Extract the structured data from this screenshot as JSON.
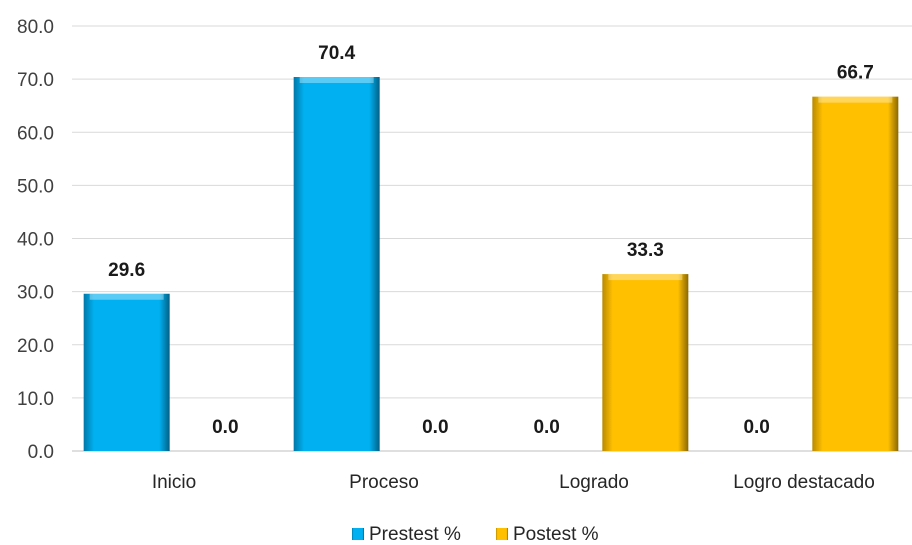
{
  "chart_data": {
    "type": "bar",
    "categories": [
      "Inicio",
      "Proceso",
      "Logrado",
      "Logro destacado"
    ],
    "series": [
      {
        "name": "Prestest %",
        "values": [
          29.6,
          70.4,
          0.0,
          0.0
        ],
        "color": "#00B0F0"
      },
      {
        "name": "Postest %",
        "values": [
          0.0,
          0.0,
          33.3,
          66.7
        ],
        "color": "#FFC000"
      }
    ],
    "title": "",
    "xlabel": "",
    "ylabel": "",
    "ylim": [
      0,
      80
    ],
    "yticks": [
      "0.0",
      "10.0",
      "20.0",
      "30.0",
      "40.0",
      "50.0",
      "60.0",
      "70.0",
      "80.0"
    ],
    "data_labels": [
      [
        "29.6",
        "70.4",
        "0.0",
        "0.0"
      ],
      [
        "0.0",
        "0.0",
        "33.3",
        "66.7"
      ]
    ],
    "grid": true,
    "legend_position": "bottom"
  }
}
